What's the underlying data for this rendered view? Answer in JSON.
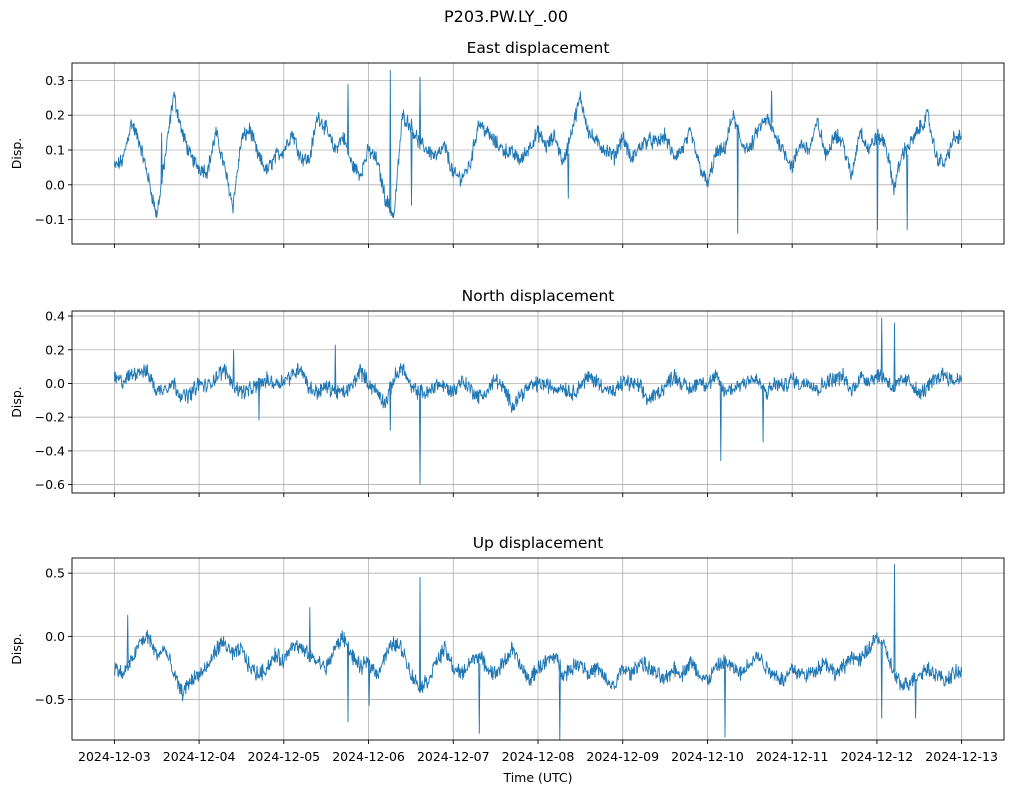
{
  "figure": {
    "suptitle": "P203.PW.LY_.00",
    "xlabel": "Time (UTC)",
    "line_color": "#1f77b4",
    "grid_color": "#b0b0b0"
  },
  "chart_data": [
    {
      "type": "line",
      "title": "East displacement",
      "ylabel": "Disp.",
      "ylim": [
        -0.17,
        0.35
      ],
      "yticks": [
        -0.1,
        0.0,
        0.1,
        0.2,
        0.3
      ],
      "ytick_labels": [
        "−0.1",
        "0.0",
        "0.1",
        "0.2",
        "0.3"
      ],
      "grid": true,
      "x_start": "2024-12-03",
      "x_end": "2024-12-13",
      "x_units": "days since 2024-12-03",
      "xlim": [
        -0.5,
        10.5
      ],
      "xticks": [
        0,
        1,
        2,
        3,
        4,
        5,
        6,
        7,
        8,
        9,
        10
      ],
      "xtick_labels": [
        "2024-12-03",
        "2024-12-04",
        "2024-12-05",
        "2024-12-06",
        "2024-12-07",
        "2024-12-08",
        "2024-12-09",
        "2024-12-10",
        "2024-12-11",
        "2024-12-12",
        "2024-12-13"
      ],
      "show_xtick_labels": false,
      "series": [
        {
          "name": "East",
          "x": [
            0,
            0.1,
            0.2,
            0.3,
            0.4,
            0.5,
            0.6,
            0.7,
            0.8,
            0.9,
            1.0,
            1.1,
            1.2,
            1.3,
            1.4,
            1.5,
            1.6,
            1.7,
            1.8,
            1.9,
            2.0,
            2.1,
            2.2,
            2.3,
            2.4,
            2.5,
            2.6,
            2.7,
            2.8,
            2.9,
            3.0,
            3.1,
            3.2,
            3.3,
            3.4,
            3.5,
            3.6,
            3.7,
            3.8,
            3.9,
            4.0,
            4.1,
            4.2,
            4.3,
            4.4,
            4.5,
            4.6,
            4.7,
            4.8,
            4.9,
            5.0,
            5.1,
            5.2,
            5.3,
            5.4,
            5.5,
            5.6,
            5.7,
            5.8,
            5.9,
            6.0,
            6.1,
            6.2,
            6.3,
            6.4,
            6.5,
            6.6,
            6.7,
            6.8,
            6.9,
            7.0,
            7.1,
            7.2,
            7.3,
            7.4,
            7.5,
            7.6,
            7.7,
            7.8,
            7.9,
            8.0,
            8.1,
            8.2,
            8.3,
            8.4,
            8.5,
            8.6,
            8.7,
            8.8,
            8.9,
            9.0,
            9.1,
            9.2,
            9.3,
            9.4,
            9.5,
            9.6,
            9.7,
            9.8,
            9.9,
            10.0
          ],
          "values": [
            0.05,
            0.07,
            0.18,
            0.12,
            0.02,
            -0.09,
            0.08,
            0.26,
            0.15,
            0.08,
            0.05,
            0.04,
            0.15,
            0.05,
            -0.06,
            0.13,
            0.16,
            0.08,
            0.04,
            0.08,
            0.1,
            0.15,
            0.08,
            0.07,
            0.2,
            0.16,
            0.1,
            0.14,
            0.06,
            0.03,
            0.1,
            0.07,
            -0.04,
            -0.09,
            0.2,
            0.17,
            0.12,
            0.1,
            0.08,
            0.11,
            0.03,
            0.02,
            0.06,
            0.18,
            0.15,
            0.12,
            0.1,
            0.09,
            0.07,
            0.11,
            0.15,
            0.11,
            0.14,
            0.06,
            0.16,
            0.25,
            0.15,
            0.12,
            0.1,
            0.08,
            0.14,
            0.07,
            0.11,
            0.13,
            0.12,
            0.14,
            0.08,
            0.1,
            0.15,
            0.06,
            0.0,
            0.09,
            0.1,
            0.2,
            0.12,
            0.1,
            0.16,
            0.19,
            0.14,
            0.1,
            0.05,
            0.12,
            0.1,
            0.18,
            0.08,
            0.15,
            0.12,
            0.02,
            0.16,
            0.1,
            0.14,
            0.12,
            -0.01,
            0.09,
            0.12,
            0.16,
            0.2,
            0.08,
            0.06,
            0.13,
            0.14
          ],
          "spikes": [
            {
              "x": 0.55,
              "value": 0.15
            },
            {
              "x": 2.75,
              "value": 0.29
            },
            {
              "x": 3.25,
              "value": 0.33
            },
            {
              "x": 3.5,
              "value": -0.06
            },
            {
              "x": 3.6,
              "value": 0.31
            },
            {
              "x": 5.35,
              "value": -0.04
            },
            {
              "x": 7.35,
              "value": -0.14
            },
            {
              "x": 7.75,
              "value": 0.27
            },
            {
              "x": 9.0,
              "value": -0.13
            },
            {
              "x": 9.35,
              "value": -0.13
            }
          ]
        }
      ]
    },
    {
      "type": "line",
      "title": "North displacement",
      "ylabel": "Disp.",
      "ylim": [
        -0.65,
        0.43
      ],
      "yticks": [
        -0.6,
        -0.4,
        -0.2,
        0.0,
        0.2,
        0.4
      ],
      "ytick_labels": [
        "−0.6",
        "−0.4",
        "−0.2",
        "0.0",
        "0.2",
        "0.4"
      ],
      "grid": true,
      "x_start": "2024-12-03",
      "x_end": "2024-12-13",
      "x_units": "days since 2024-12-03",
      "xlim": [
        -0.5,
        10.5
      ],
      "xticks": [
        0,
        1,
        2,
        3,
        4,
        5,
        6,
        7,
        8,
        9,
        10
      ],
      "xtick_labels": [
        "2024-12-03",
        "2024-12-04",
        "2024-12-05",
        "2024-12-06",
        "2024-12-07",
        "2024-12-08",
        "2024-12-09",
        "2024-12-10",
        "2024-12-11",
        "2024-12-12",
        "2024-12-13"
      ],
      "show_xtick_labels": false,
      "series": [
        {
          "name": "North",
          "x": [
            0,
            0.1,
            0.2,
            0.3,
            0.4,
            0.5,
            0.6,
            0.7,
            0.8,
            0.9,
            1.0,
            1.1,
            1.2,
            1.3,
            1.4,
            1.5,
            1.6,
            1.7,
            1.8,
            1.9,
            2.0,
            2.1,
            2.2,
            2.3,
            2.4,
            2.5,
            2.6,
            2.7,
            2.8,
            2.9,
            3.0,
            3.1,
            3.2,
            3.3,
            3.4,
            3.5,
            3.6,
            3.7,
            3.8,
            3.9,
            4.0,
            4.1,
            4.2,
            4.3,
            4.4,
            4.5,
            4.6,
            4.7,
            4.8,
            4.9,
            5.0,
            5.1,
            5.2,
            5.3,
            5.4,
            5.5,
            5.6,
            5.7,
            5.8,
            5.9,
            6.0,
            6.1,
            6.2,
            6.3,
            6.4,
            6.5,
            6.6,
            6.7,
            6.8,
            6.9,
            7.0,
            7.1,
            7.2,
            7.3,
            7.4,
            7.5,
            7.6,
            7.7,
            7.8,
            7.9,
            8.0,
            8.1,
            8.2,
            8.3,
            8.4,
            8.5,
            8.6,
            8.7,
            8.8,
            8.9,
            9.0,
            9.1,
            9.2,
            9.3,
            9.4,
            9.5,
            9.6,
            9.7,
            9.8,
            9.9,
            10.0
          ],
          "values": [
            0.03,
            0.01,
            0.05,
            0.08,
            0.06,
            -0.05,
            -0.02,
            0.0,
            -0.08,
            -0.06,
            0.0,
            -0.02,
            0.04,
            0.08,
            0.0,
            -0.05,
            -0.04,
            -0.01,
            0.02,
            0.0,
            0.02,
            0.05,
            0.1,
            -0.03,
            -0.05,
            -0.02,
            -0.04,
            -0.06,
            -0.02,
            0.08,
            0.0,
            -0.05,
            -0.12,
            0.03,
            0.1,
            -0.03,
            -0.05,
            -0.06,
            0.0,
            -0.02,
            -0.05,
            0.02,
            -0.03,
            -0.08,
            -0.05,
            0.03,
            -0.04,
            -0.13,
            -0.06,
            -0.02,
            0.0,
            -0.01,
            -0.03,
            -0.02,
            -0.06,
            -0.01,
            0.04,
            0.01,
            -0.03,
            -0.06,
            0.01,
            0.0,
            -0.02,
            -0.1,
            -0.06,
            -0.02,
            0.05,
            0.0,
            -0.04,
            0.02,
            -0.01,
            0.04,
            -0.05,
            -0.03,
            0.0,
            0.03,
            0.01,
            -0.06,
            0.0,
            -0.02,
            0.03,
            -0.01,
            0.02,
            -0.04,
            0.01,
            0.03,
            0.04,
            -0.05,
            0.04,
            0.02,
            0.05,
            0.03,
            -0.03,
            0.02,
            0.01,
            -0.07,
            -0.02,
            0.03,
            0.06,
            0.01,
            0.04
          ],
          "spikes": [
            {
              "x": 1.4,
              "value": 0.2
            },
            {
              "x": 1.7,
              "value": -0.22
            },
            {
              "x": 2.6,
              "value": 0.23
            },
            {
              "x": 3.25,
              "value": -0.28
            },
            {
              "x": 3.6,
              "value": -0.6
            },
            {
              "x": 7.15,
              "value": -0.46
            },
            {
              "x": 7.65,
              "value": -0.35
            },
            {
              "x": 9.05,
              "value": 0.39
            },
            {
              "x": 9.2,
              "value": 0.36
            }
          ]
        }
      ]
    },
    {
      "type": "line",
      "title": "Up displacement",
      "ylabel": "Disp.",
      "ylim": [
        -0.82,
        0.62
      ],
      "yticks": [
        -0.5,
        0.0,
        0.5
      ],
      "ytick_labels": [
        "−0.5",
        "0.0",
        "0.5"
      ],
      "grid": true,
      "x_start": "2024-12-03",
      "x_end": "2024-12-13",
      "x_units": "days since 2024-12-03",
      "xlim": [
        -0.5,
        10.5
      ],
      "xticks": [
        0,
        1,
        2,
        3,
        4,
        5,
        6,
        7,
        8,
        9,
        10
      ],
      "xtick_labels": [
        "2024-12-03",
        "2024-12-04",
        "2024-12-05",
        "2024-12-06",
        "2024-12-07",
        "2024-12-08",
        "2024-12-09",
        "2024-12-10",
        "2024-12-11",
        "2024-12-12",
        "2024-12-13"
      ],
      "show_xtick_labels": true,
      "series": [
        {
          "name": "Up",
          "x": [
            0,
            0.1,
            0.2,
            0.3,
            0.4,
            0.5,
            0.6,
            0.7,
            0.8,
            0.9,
            1.0,
            1.1,
            1.2,
            1.3,
            1.4,
            1.5,
            1.6,
            1.7,
            1.8,
            1.9,
            2.0,
            2.1,
            2.2,
            2.3,
            2.4,
            2.5,
            2.6,
            2.7,
            2.8,
            2.9,
            3.0,
            3.1,
            3.2,
            3.3,
            3.4,
            3.5,
            3.6,
            3.7,
            3.8,
            3.9,
            4.0,
            4.1,
            4.2,
            4.3,
            4.4,
            4.5,
            4.6,
            4.7,
            4.8,
            4.9,
            5.0,
            5.1,
            5.2,
            5.3,
            5.4,
            5.5,
            5.6,
            5.7,
            5.8,
            5.9,
            6.0,
            6.1,
            6.2,
            6.3,
            6.4,
            6.5,
            6.6,
            6.7,
            6.8,
            6.9,
            7.0,
            7.1,
            7.2,
            7.3,
            7.4,
            7.5,
            7.6,
            7.7,
            7.8,
            7.9,
            8.0,
            8.1,
            8.2,
            8.3,
            8.4,
            8.5,
            8.6,
            8.7,
            8.8,
            8.9,
            9.0,
            9.1,
            9.2,
            9.3,
            9.4,
            9.5,
            9.6,
            9.7,
            9.8,
            9.9,
            10.0
          ],
          "values": [
            -0.25,
            -0.3,
            -0.2,
            -0.05,
            0.0,
            -0.15,
            -0.1,
            -0.3,
            -0.45,
            -0.35,
            -0.3,
            -0.25,
            -0.1,
            -0.05,
            -0.15,
            -0.1,
            -0.25,
            -0.3,
            -0.25,
            -0.15,
            -0.2,
            -0.05,
            -0.1,
            -0.15,
            -0.2,
            -0.25,
            -0.1,
            0.0,
            -0.15,
            -0.25,
            -0.2,
            -0.3,
            -0.15,
            -0.05,
            -0.1,
            -0.3,
            -0.4,
            -0.35,
            -0.2,
            -0.1,
            -0.25,
            -0.3,
            -0.2,
            -0.15,
            -0.25,
            -0.3,
            -0.2,
            -0.1,
            -0.25,
            -0.35,
            -0.25,
            -0.2,
            -0.15,
            -0.3,
            -0.25,
            -0.2,
            -0.3,
            -0.25,
            -0.35,
            -0.4,
            -0.25,
            -0.3,
            -0.2,
            -0.25,
            -0.3,
            -0.35,
            -0.25,
            -0.3,
            -0.2,
            -0.3,
            -0.35,
            -0.25,
            -0.2,
            -0.25,
            -0.3,
            -0.2,
            -0.15,
            -0.25,
            -0.3,
            -0.35,
            -0.25,
            -0.3,
            -0.3,
            -0.25,
            -0.2,
            -0.3,
            -0.25,
            -0.15,
            -0.2,
            -0.1,
            0.0,
            -0.1,
            -0.3,
            -0.4,
            -0.35,
            -0.3,
            -0.25,
            -0.3,
            -0.35,
            -0.3,
            -0.28
          ],
          "spikes": [
            {
              "x": 0.15,
              "value": 0.17
            },
            {
              "x": 2.3,
              "value": 0.23
            },
            {
              "x": 2.75,
              "value": -0.68
            },
            {
              "x": 3.0,
              "value": -0.55
            },
            {
              "x": 3.6,
              "value": 0.47
            },
            {
              "x": 4.3,
              "value": -0.77
            },
            {
              "x": 5.25,
              "value": -0.82
            },
            {
              "x": 7.2,
              "value": -0.8
            },
            {
              "x": 9.05,
              "value": -0.65
            },
            {
              "x": 9.2,
              "value": 0.57
            },
            {
              "x": 9.45,
              "value": -0.65
            }
          ]
        }
      ]
    }
  ]
}
